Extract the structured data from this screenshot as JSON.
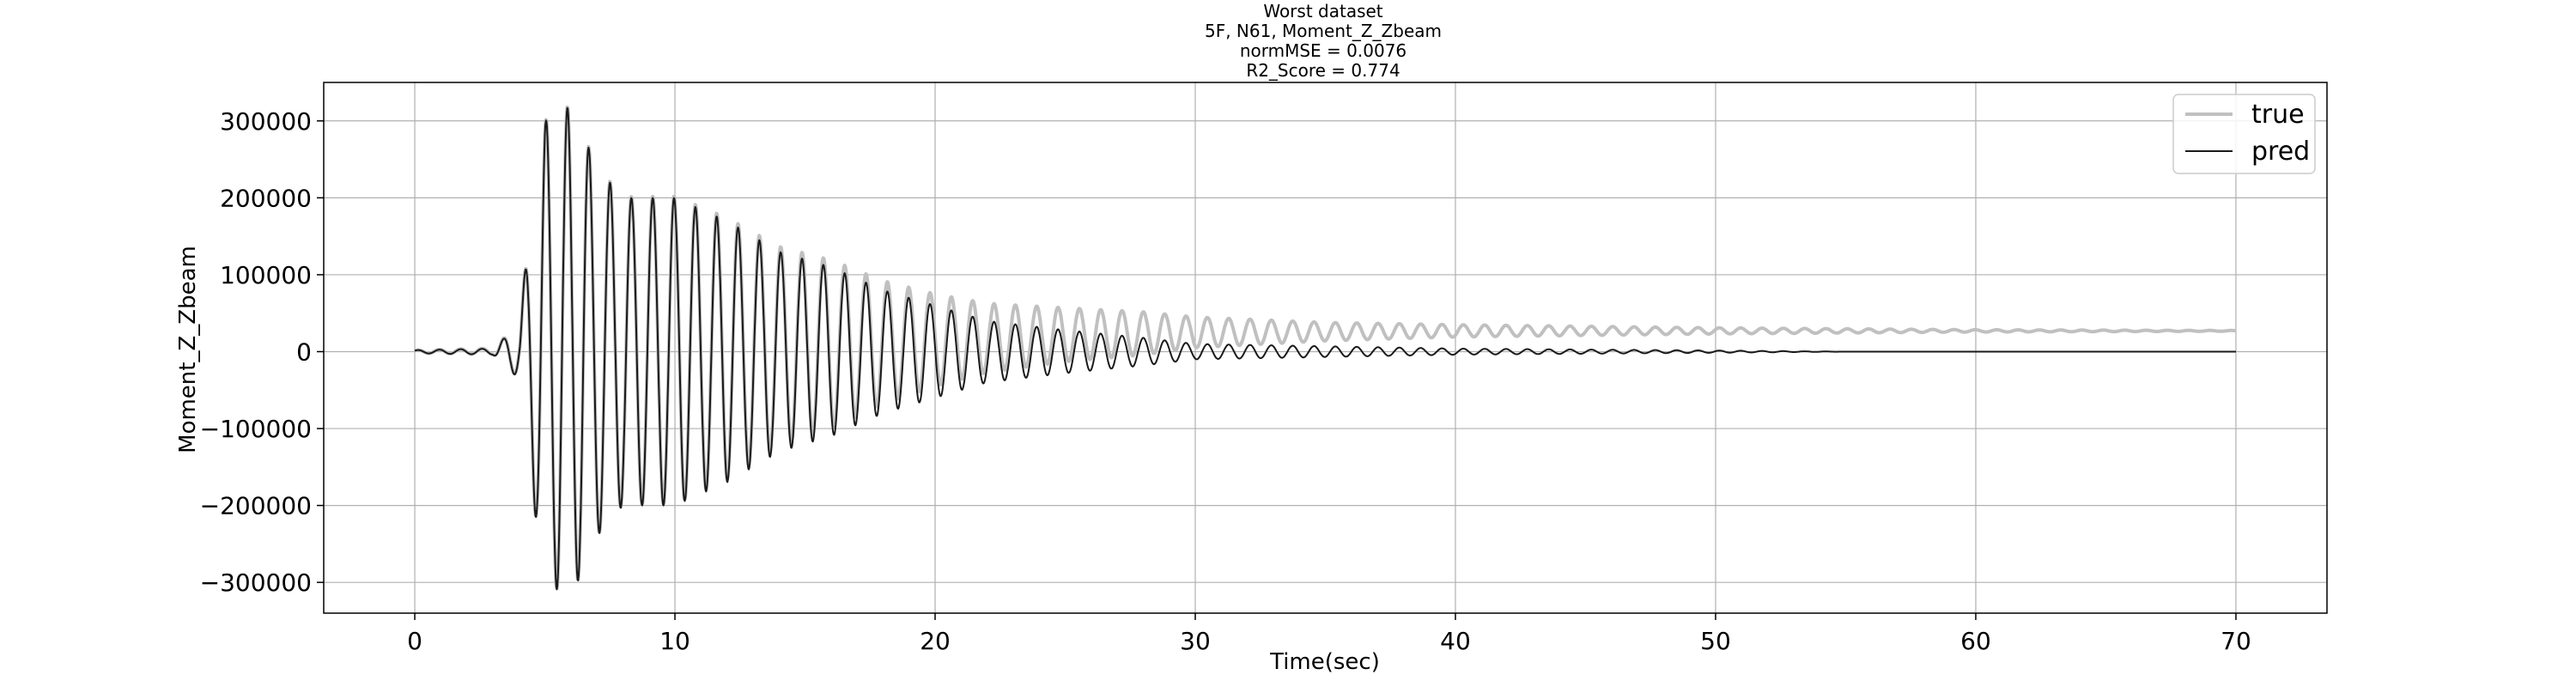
{
  "chart_data": {
    "type": "line",
    "title_lines": [
      "Worst dataset",
      "5F, N61, Moment_Z_Zbeam",
      "normMSE = 0.0076",
      "R2_Score = 0.774"
    ],
    "xlabel": "Time(sec)",
    "ylabel": "Moment_Z_Zbeam",
    "xlim": [
      -3.5,
      73.5
    ],
    "ylim": [
      -340000,
      350000
    ],
    "xticks": [
      0,
      10,
      20,
      30,
      40,
      50,
      60,
      70
    ],
    "xtick_labels": [
      "0",
      "10",
      "20",
      "30",
      "40",
      "50",
      "60",
      "70"
    ],
    "yticks": [
      -300000,
      -200000,
      -100000,
      0,
      100000,
      200000,
      300000
    ],
    "ytick_labels": [
      "−300000",
      "−200000",
      "−100000",
      "0",
      "100000",
      "200000",
      "300000"
    ],
    "grid": true,
    "legend_position": "top-right",
    "series": [
      {
        "name": "true",
        "color": "#c0c0c0",
        "oscillation_period_sec": 0.82,
        "envelope": [
          [
            0,
            2000
          ],
          [
            3,
            4000
          ],
          [
            4,
            35000
          ],
          [
            4.5,
            180000
          ],
          [
            5,
            300000
          ],
          [
            6,
            320000
          ],
          [
            7,
            240000
          ],
          [
            8,
            200000
          ],
          [
            10,
            200000
          ],
          [
            12,
            170000
          ],
          [
            14,
            130000
          ],
          [
            16,
            110000
          ],
          [
            18,
            80000
          ],
          [
            20,
            60000
          ],
          [
            22,
            45000
          ],
          [
            25,
            35000
          ],
          [
            28,
            28000
          ],
          [
            30,
            20000
          ],
          [
            35,
            12000
          ],
          [
            40,
            8000
          ],
          [
            50,
            4000
          ],
          [
            60,
            1500
          ],
          [
            70,
            500
          ]
        ],
        "offset": [
          [
            0,
            0
          ],
          [
            10,
            2000
          ],
          [
            15,
            8000
          ],
          [
            20,
            15000
          ],
          [
            25,
            22000
          ],
          [
            30,
            25000
          ],
          [
            40,
            27000
          ],
          [
            70,
            27000
          ]
        ]
      },
      {
        "name": "pred",
        "color": "#1a1a1a",
        "oscillation_period_sec": 0.82,
        "envelope": [
          [
            0,
            2000
          ],
          [
            3,
            4000
          ],
          [
            4,
            35000
          ],
          [
            4.5,
            180000
          ],
          [
            5,
            300000
          ],
          [
            6,
            320000
          ],
          [
            7,
            240000
          ],
          [
            8,
            200000
          ],
          [
            10,
            200000
          ],
          [
            12,
            170000
          ],
          [
            14,
            130000
          ],
          [
            16,
            110000
          ],
          [
            18,
            80000
          ],
          [
            20,
            60000
          ],
          [
            22,
            40000
          ],
          [
            25,
            28000
          ],
          [
            28,
            18000
          ],
          [
            30,
            10000
          ],
          [
            35,
            7000
          ],
          [
            40,
            4000
          ],
          [
            50,
            1500
          ],
          [
            55,
            0
          ],
          [
            70,
            0
          ]
        ],
        "offset": [
          [
            0,
            0
          ],
          [
            70,
            0
          ]
        ]
      }
    ]
  }
}
